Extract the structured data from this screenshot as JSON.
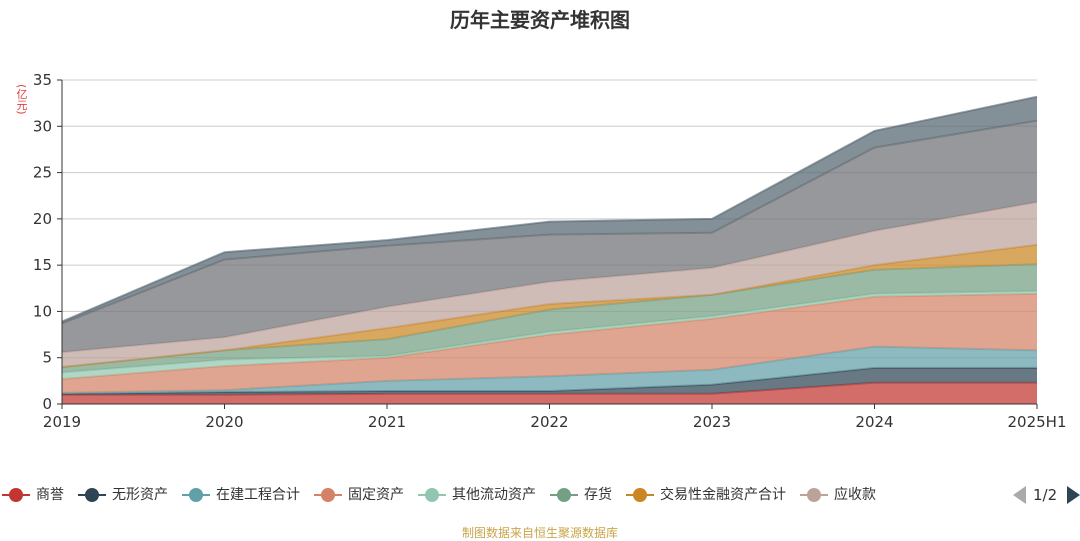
{
  "title": "历年主要资产堆积图",
  "y_unit": "(亿元)",
  "source": "制图数据来自恒生聚源数据库",
  "pager": {
    "text": "1/2"
  },
  "legend": [
    {
      "name": "商誉",
      "color": "#c23531"
    },
    {
      "name": "无形资产",
      "color": "#2f4554"
    },
    {
      "name": "在建工程合计",
      "color": "#61a0a8"
    },
    {
      "name": "固定资产",
      "color": "#d48265"
    },
    {
      "name": "其他流动资产",
      "color": "#91c7ae"
    },
    {
      "name": "存货",
      "color": "#749f83"
    },
    {
      "name": "交易性金融资产合计",
      "color": "#ca8622"
    },
    {
      "name": "应收款",
      "color": "#bda29a"
    }
  ],
  "chart_data": {
    "type": "area",
    "stacked": true,
    "title": "历年主要资产堆积图",
    "ylabel": "(亿元)",
    "categories": [
      "2019",
      "2020",
      "2021",
      "2022",
      "2023",
      "2024",
      "2025H1"
    ],
    "ylim": [
      0,
      35
    ],
    "yticks": [
      0,
      5,
      10,
      15,
      20,
      25,
      30,
      35
    ],
    "grid": true,
    "legend_position": "bottom",
    "series": [
      {
        "name": "商誉",
        "color": "#c23531",
        "values": [
          1.0,
          1.0,
          1.1,
          1.1,
          1.1,
          2.3,
          2.3
        ]
      },
      {
        "name": "无形资产",
        "color": "#2f4554",
        "values": [
          0.1,
          0.3,
          0.3,
          0.3,
          1.0,
          1.6,
          1.6
        ]
      },
      {
        "name": "在建工程合计",
        "color": "#61a0a8",
        "values": [
          0.1,
          0.2,
          1.1,
          1.6,
          1.6,
          2.3,
          1.9
        ]
      },
      {
        "name": "固定资产",
        "color": "#d48265",
        "values": [
          1.5,
          2.6,
          2.5,
          4.5,
          5.5,
          5.4,
          6.1
        ]
      },
      {
        "name": "其他流动资产",
        "color": "#91c7ae",
        "values": [
          0.7,
          0.7,
          0.2,
          0.3,
          0.3,
          0.3,
          0.3
        ]
      },
      {
        "name": "存货",
        "color": "#749f83",
        "values": [
          0.6,
          1.0,
          1.8,
          2.4,
          2.3,
          2.6,
          2.9
        ]
      },
      {
        "name": "交易性金融资产合计",
        "color": "#ca8622",
        "values": [
          0.0,
          0.0,
          1.2,
          0.6,
          0.0,
          0.5,
          2.1
        ]
      },
      {
        "name": "应收款",
        "color": "#bda29a",
        "values": [
          1.6,
          1.4,
          2.3,
          2.4,
          2.9,
          3.7,
          4.6
        ]
      },
      {
        "name": "",
        "color": "#6e7074",
        "values": [
          3.1,
          8.4,
          6.6,
          5.1,
          3.8,
          9.0,
          8.8
        ]
      },
      {
        "name": "",
        "color": "#546570",
        "values": [
          0.2,
          0.8,
          0.6,
          1.4,
          1.5,
          1.8,
          2.6
        ]
      }
    ]
  }
}
